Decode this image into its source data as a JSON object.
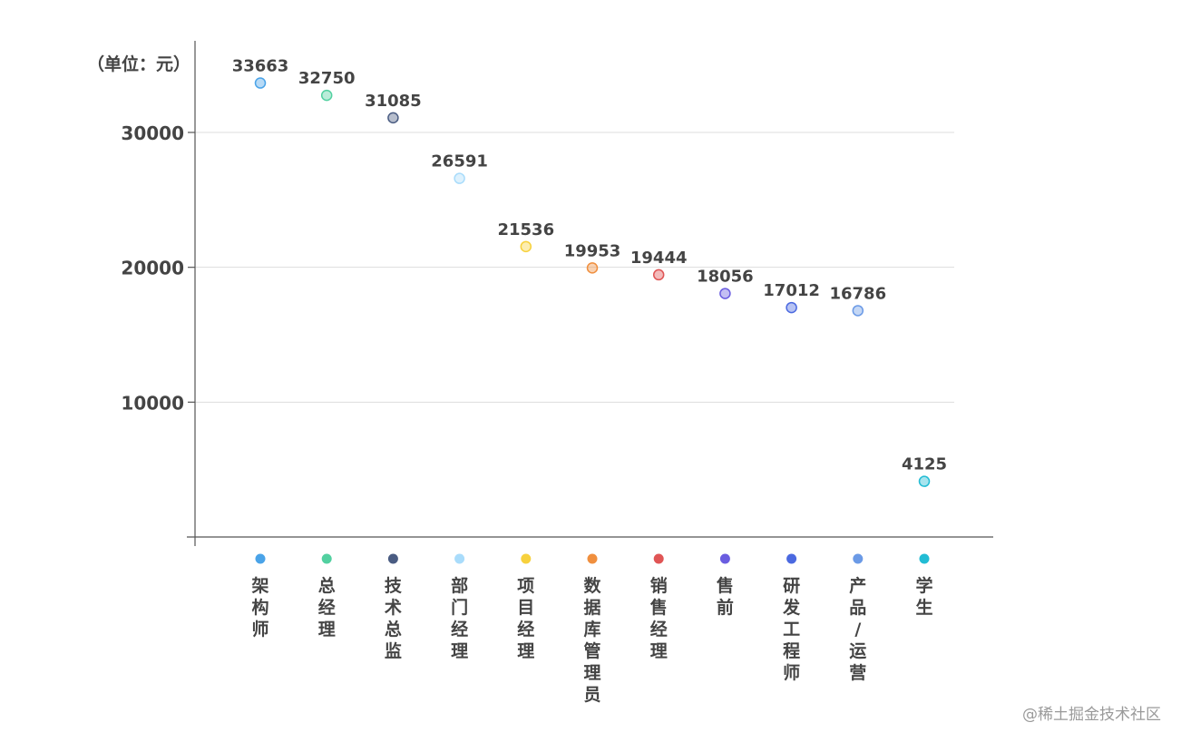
{
  "chart_data": {
    "type": "scatter",
    "unit_label": "（单位：元）",
    "categories": [
      "架构师",
      "总经理",
      "技术总监",
      "部门经理",
      "项目经理",
      "数据库管理员",
      "销售经理",
      "售前",
      "研发工程师",
      "产品/运营",
      "学生"
    ],
    "values": [
      33663,
      32750,
      31085,
      26591,
      21536,
      19953,
      19444,
      18056,
      17012,
      16786,
      4125
    ],
    "colors": [
      "#4aa3e8",
      "#52d0a0",
      "#4a5c82",
      "#a9dcfb",
      "#f7d13d",
      "#f08f3e",
      "#e05555",
      "#6a5de0",
      "#4b69e0",
      "#6b9ae6",
      "#22bcd4"
    ],
    "yticks": [
      10000,
      20000,
      30000
    ],
    "ylim": [
      0,
      36000
    ],
    "grid": true,
    "legend": "none"
  },
  "watermark": "@稀土掘金技术社区"
}
